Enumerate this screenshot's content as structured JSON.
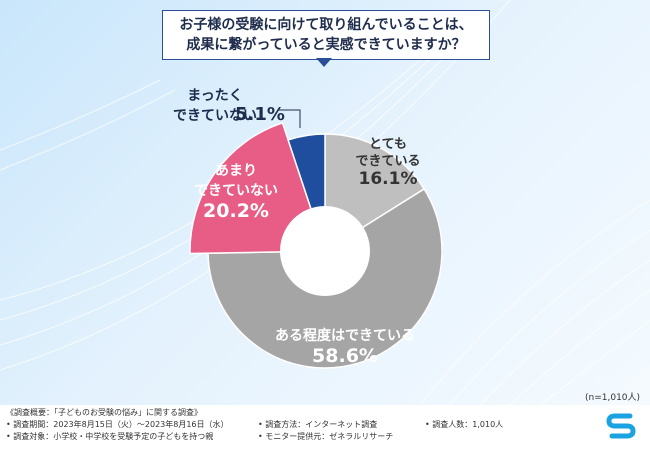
{
  "title": {
    "line1": "お子様の受験に向けて取り組んでいることは、",
    "line2": "成果に繋がっていると実感できていますか？"
  },
  "sample_size": "(n=1,010人)",
  "chart_data": {
    "type": "pie",
    "slices": [
      {
        "label_lines": [
          "とても",
          "できている"
        ],
        "value": 16.1,
        "value_text": "16.1%",
        "color": "#bfbfbf"
      },
      {
        "label_lines": [
          "ある程度はできている"
        ],
        "value": 58.6,
        "value_text": "58.6%",
        "color": "#a5a5a5"
      },
      {
        "label_lines": [
          "あまり",
          "できていない"
        ],
        "value": 20.2,
        "value_text": "20.2%",
        "color": "#e85d85"
      },
      {
        "label_lines": [
          "まったく",
          "できていない"
        ],
        "value": 5.1,
        "value_text": "5.1%",
        "color": "#1f4e9e"
      }
    ]
  },
  "footer": {
    "summary": "《調査概要：「子どものお受験の悩み」に関する調査》",
    "period": "• 調査期間：2023年8月15日（火）～2023年8月16日（水）",
    "target": "• 調査対象：小学校・中学校を受験予定の子どもを持つ親",
    "method": "• 調査方法：インターネット調査",
    "provider": "• モニター提供元：ゼネラルリサーチ",
    "count": "• 調査人数：1,010人"
  },
  "colors": {
    "accent": "#2a4f96",
    "background": "#d6ecfb"
  },
  "logo_icon": "s-logo-icon"
}
